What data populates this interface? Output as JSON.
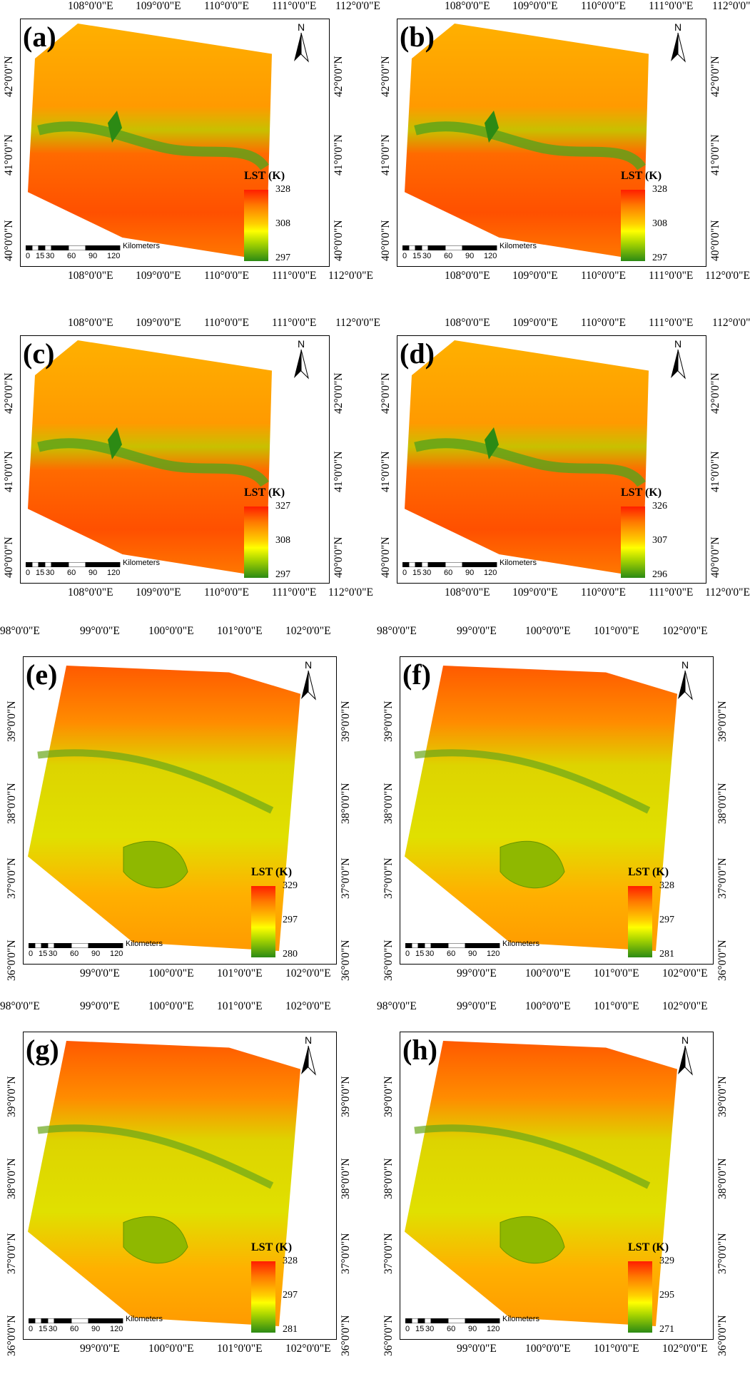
{
  "legend_title": "LST (K)",
  "scale": {
    "unit_label": "Kilometers",
    "ticks": [
      "0",
      "15",
      "30",
      "60",
      "90",
      "120"
    ]
  },
  "north_label": "N",
  "colors": {
    "high": "#ff1e00",
    "mid_high": "#ff8c00",
    "mid": "#ffff00",
    "low": "#2c8a14"
  },
  "region_top": {
    "lon_labels": [
      "108°0'0\"E",
      "109°0'0\"E",
      "110°0'0\"E",
      "111°0'0\"E",
      "112°0'0\"E"
    ],
    "lat_labels": [
      "42°0'0\"N",
      "41°0'0\"N",
      "40°0'0\"N"
    ]
  },
  "region_bottom": {
    "lon_labels_top": [
      "98°0'0\"E",
      "99°0'0\"E",
      "100°0'0\"E",
      "101°0'0\"E",
      "102°0'0\"E"
    ],
    "lon_labels_bottom": [
      "99°0'0\"E",
      "100°0'0\"E",
      "101°0'0\"E",
      "102°0'0\"E"
    ],
    "lat_labels": [
      "39°0'0\"N",
      "38°0'0\"N",
      "37°0'0\"N",
      "36°0'0\"N"
    ]
  },
  "panels": [
    {
      "label": "(a)",
      "region": "top",
      "legend_max": "328",
      "legend_mid": "308",
      "legend_min": "297"
    },
    {
      "label": "(b)",
      "region": "top",
      "legend_max": "328",
      "legend_mid": "308",
      "legend_min": "297"
    },
    {
      "label": "(c)",
      "region": "top",
      "legend_max": "327",
      "legend_mid": "308",
      "legend_min": "297"
    },
    {
      "label": "(d)",
      "region": "top",
      "legend_max": "326",
      "legend_mid": "307",
      "legend_min": "296"
    },
    {
      "label": "(e)",
      "region": "bottom",
      "legend_max": "329",
      "legend_mid": "297",
      "legend_min": "280"
    },
    {
      "label": "(f)",
      "region": "bottom",
      "legend_max": "328",
      "legend_mid": "297",
      "legend_min": "281"
    },
    {
      "label": "(g)",
      "region": "bottom",
      "legend_max": "328",
      "legend_mid": "297",
      "legend_min": "281"
    },
    {
      "label": "(h)",
      "region": "bottom",
      "legend_max": "329",
      "legend_mid": "295",
      "legend_min": "271"
    }
  ]
}
